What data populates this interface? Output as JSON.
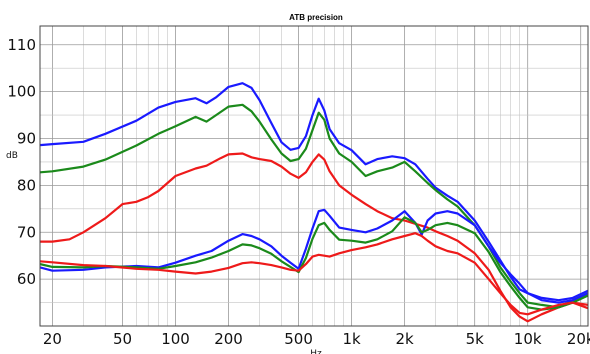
{
  "chart_data": {
    "type": "line",
    "title": "ATB precision",
    "xlabel": "Hz",
    "ylabel": "dB",
    "xscale": "log",
    "xlim": [
      17,
      22000
    ],
    "ylim": [
      50,
      114
    ],
    "x_ticks": [
      {
        "value": 20,
        "label": "20"
      },
      {
        "value": 50,
        "label": "50"
      },
      {
        "value": 100,
        "label": "100"
      },
      {
        "value": 200,
        "label": "200"
      },
      {
        "value": 500,
        "label": "500"
      },
      {
        "value": 1000,
        "label": "1k"
      },
      {
        "value": 2000,
        "label": "2k"
      },
      {
        "value": 5000,
        "label": "5k"
      },
      {
        "value": 10000,
        "label": "10k"
      },
      {
        "value": 20000,
        "label": "20k"
      }
    ],
    "y_ticks": [
      60,
      70,
      80,
      90,
      100,
      110
    ],
    "grid": true,
    "series": [
      {
        "color": "#1a1aff",
        "points": [
          [
            17,
            88.6
          ],
          [
            20,
            88.8
          ],
          [
            30,
            89.3
          ],
          [
            40,
            91
          ],
          [
            60,
            93.8
          ],
          [
            80,
            96.6
          ],
          [
            100,
            97.8
          ],
          [
            130,
            98.6
          ],
          [
            150,
            97.5
          ],
          [
            170,
            98.8
          ],
          [
            200,
            101
          ],
          [
            240,
            101.8
          ],
          [
            270,
            100.8
          ],
          [
            300,
            98.2
          ],
          [
            350,
            93.3
          ],
          [
            400,
            89.2
          ],
          [
            450,
            87.6
          ],
          [
            500,
            88
          ],
          [
            550,
            90.5
          ],
          [
            600,
            95
          ],
          [
            650,
            98.5
          ],
          [
            700,
            96
          ],
          [
            750,
            92
          ],
          [
            850,
            89
          ],
          [
            1000,
            87.5
          ],
          [
            1200,
            84.5
          ],
          [
            1400,
            85.6
          ],
          [
            1700,
            86.2
          ],
          [
            2000,
            85.8
          ],
          [
            2300,
            84.5
          ],
          [
            2700,
            81.4
          ],
          [
            3000,
            79.5
          ],
          [
            3500,
            77.8
          ],
          [
            4000,
            76.5
          ],
          [
            5000,
            72.5
          ],
          [
            6000,
            68
          ],
          [
            7000,
            64
          ],
          [
            8000,
            60.5
          ],
          [
            9000,
            57.8
          ],
          [
            10000,
            57
          ],
          [
            12000,
            56
          ],
          [
            15000,
            55.5
          ],
          [
            18000,
            56
          ],
          [
            22000,
            57.5
          ]
        ]
      },
      {
        "color": "#1b8a1b",
        "points": [
          [
            17,
            82.8
          ],
          [
            20,
            83
          ],
          [
            30,
            84
          ],
          [
            40,
            85.5
          ],
          [
            60,
            88.5
          ],
          [
            80,
            91
          ],
          [
            100,
            92.6
          ],
          [
            130,
            94.6
          ],
          [
            150,
            93.6
          ],
          [
            170,
            95
          ],
          [
            200,
            96.8
          ],
          [
            240,
            97.2
          ],
          [
            270,
            95.8
          ],
          [
            300,
            93.6
          ],
          [
            350,
            89.8
          ],
          [
            400,
            86.8
          ],
          [
            450,
            85.2
          ],
          [
            500,
            85.6
          ],
          [
            550,
            87.8
          ],
          [
            600,
            91.8
          ],
          [
            650,
            95.5
          ],
          [
            700,
            94
          ],
          [
            750,
            90
          ],
          [
            850,
            86.8
          ],
          [
            1000,
            85
          ],
          [
            1200,
            82
          ],
          [
            1400,
            83
          ],
          [
            1700,
            83.8
          ],
          [
            2000,
            85
          ],
          [
            2300,
            83
          ],
          [
            2700,
            80.5
          ],
          [
            3000,
            79
          ],
          [
            3500,
            77
          ],
          [
            4000,
            75.5
          ],
          [
            5000,
            71.5
          ],
          [
            6000,
            67
          ],
          [
            7000,
            62.5
          ],
          [
            8000,
            59.5
          ],
          [
            9000,
            57
          ],
          [
            10000,
            55
          ],
          [
            12000,
            54.5
          ],
          [
            15000,
            54
          ],
          [
            18000,
            55.5
          ],
          [
            22000,
            57
          ]
        ]
      },
      {
        "color": "#ee1a1a",
        "points": [
          [
            17,
            68
          ],
          [
            20,
            68
          ],
          [
            25,
            68.5
          ],
          [
            30,
            70
          ],
          [
            40,
            73
          ],
          [
            50,
            76
          ],
          [
            60,
            76.5
          ],
          [
            70,
            77.5
          ],
          [
            80,
            78.8
          ],
          [
            100,
            82
          ],
          [
            130,
            83.6
          ],
          [
            150,
            84.2
          ],
          [
            180,
            85.8
          ],
          [
            200,
            86.6
          ],
          [
            240,
            86.8
          ],
          [
            270,
            86
          ],
          [
            300,
            85.6
          ],
          [
            350,
            85.2
          ],
          [
            400,
            84
          ],
          [
            450,
            82.5
          ],
          [
            500,
            81.6
          ],
          [
            550,
            82.8
          ],
          [
            600,
            85
          ],
          [
            650,
            86.6
          ],
          [
            700,
            85.5
          ],
          [
            750,
            83
          ],
          [
            850,
            80
          ],
          [
            1000,
            78
          ],
          [
            1200,
            76
          ],
          [
            1400,
            74.5
          ],
          [
            1700,
            73
          ],
          [
            2000,
            72.5
          ],
          [
            2300,
            71.8
          ],
          [
            2700,
            71
          ],
          [
            3000,
            70.2
          ],
          [
            3500,
            69.2
          ],
          [
            4000,
            68.2
          ],
          [
            5000,
            65.5
          ],
          [
            6000,
            62
          ],
          [
            7000,
            57.5
          ],
          [
            8000,
            54
          ],
          [
            9000,
            52
          ],
          [
            10000,
            51
          ],
          [
            12000,
            52.5
          ],
          [
            15000,
            54
          ],
          [
            18000,
            55
          ],
          [
            22000,
            54.5
          ]
        ]
      },
      {
        "color": "#1a1aff",
        "points": [
          [
            17,
            62.5
          ],
          [
            20,
            61.8
          ],
          [
            30,
            62
          ],
          [
            40,
            62.5
          ],
          [
            60,
            62.8
          ],
          [
            80,
            62.5
          ],
          [
            100,
            63.5
          ],
          [
            130,
            65
          ],
          [
            160,
            66
          ],
          [
            200,
            68.2
          ],
          [
            240,
            69.6
          ],
          [
            270,
            69.2
          ],
          [
            300,
            68.5
          ],
          [
            350,
            67
          ],
          [
            400,
            65
          ],
          [
            450,
            63.5
          ],
          [
            500,
            62.2
          ],
          [
            550,
            66.5
          ],
          [
            600,
            70.8
          ],
          [
            650,
            74.5
          ],
          [
            700,
            74.8
          ],
          [
            750,
            73.5
          ],
          [
            850,
            71
          ],
          [
            1000,
            70.5
          ],
          [
            1200,
            70
          ],
          [
            1400,
            70.8
          ],
          [
            1700,
            72.5
          ],
          [
            2000,
            74.5
          ],
          [
            2300,
            72
          ],
          [
            2500,
            69.5
          ],
          [
            2700,
            72.5
          ],
          [
            3000,
            74
          ],
          [
            3500,
            74.5
          ],
          [
            4000,
            74
          ],
          [
            5000,
            71.5
          ],
          [
            6000,
            67
          ],
          [
            7000,
            63.5
          ],
          [
            8000,
            61
          ],
          [
            9000,
            59
          ],
          [
            10000,
            57
          ],
          [
            12000,
            55.5
          ],
          [
            15000,
            55
          ],
          [
            18000,
            55.5
          ],
          [
            22000,
            57
          ]
        ]
      },
      {
        "color": "#1b8a1b",
        "points": [
          [
            17,
            63.2
          ],
          [
            20,
            62.6
          ],
          [
            30,
            62.5
          ],
          [
            40,
            62.8
          ],
          [
            60,
            62.5
          ],
          [
            80,
            62.2
          ],
          [
            100,
            62.8
          ],
          [
            130,
            63.6
          ],
          [
            160,
            64.6
          ],
          [
            200,
            66
          ],
          [
            240,
            67.4
          ],
          [
            270,
            67.2
          ],
          [
            300,
            66.6
          ],
          [
            350,
            65.4
          ],
          [
            400,
            63.8
          ],
          [
            450,
            62.6
          ],
          [
            500,
            61.5
          ],
          [
            550,
            64.5
          ],
          [
            600,
            68.6
          ],
          [
            650,
            71.5
          ],
          [
            700,
            72
          ],
          [
            750,
            70.5
          ],
          [
            850,
            68.4
          ],
          [
            1000,
            68.2
          ],
          [
            1200,
            67.8
          ],
          [
            1400,
            68.5
          ],
          [
            1700,
            70.2
          ],
          [
            2000,
            73.2
          ],
          [
            2300,
            72
          ],
          [
            2500,
            70
          ],
          [
            2700,
            70.5
          ],
          [
            3000,
            71.5
          ],
          [
            3500,
            72
          ],
          [
            4000,
            71.5
          ],
          [
            5000,
            69.8
          ],
          [
            6000,
            65.8
          ],
          [
            7000,
            61.5
          ],
          [
            8000,
            58.5
          ],
          [
            9000,
            56
          ],
          [
            10000,
            54
          ],
          [
            12000,
            53.5
          ],
          [
            15000,
            54
          ],
          [
            18000,
            55
          ],
          [
            22000,
            56.5
          ]
        ]
      },
      {
        "color": "#ee1a1a",
        "points": [
          [
            17,
            63.8
          ],
          [
            20,
            63.6
          ],
          [
            30,
            63
          ],
          [
            40,
            62.8
          ],
          [
            60,
            62.2
          ],
          [
            80,
            62
          ],
          [
            100,
            61.6
          ],
          [
            130,
            61.2
          ],
          [
            160,
            61.6
          ],
          [
            200,
            62.4
          ],
          [
            240,
            63.4
          ],
          [
            270,
            63.6
          ],
          [
            300,
            63.4
          ],
          [
            350,
            63
          ],
          [
            400,
            62.5
          ],
          [
            450,
            62
          ],
          [
            500,
            61.8
          ],
          [
            550,
            63.2
          ],
          [
            600,
            64.8
          ],
          [
            650,
            65.2
          ],
          [
            700,
            65
          ],
          [
            750,
            64.8
          ],
          [
            850,
            65.5
          ],
          [
            1000,
            66.2
          ],
          [
            1200,
            66.8
          ],
          [
            1400,
            67.4
          ],
          [
            1700,
            68.5
          ],
          [
            2000,
            69.2
          ],
          [
            2300,
            69.8
          ],
          [
            2500,
            69.2
          ],
          [
            2700,
            68.2
          ],
          [
            3000,
            67
          ],
          [
            3500,
            66
          ],
          [
            4000,
            65.5
          ],
          [
            5000,
            63.5
          ],
          [
            6000,
            60
          ],
          [
            7000,
            57
          ],
          [
            8000,
            54.5
          ],
          [
            9000,
            52.8
          ],
          [
            10000,
            52.5
          ],
          [
            12000,
            53.5
          ],
          [
            15000,
            54.5
          ],
          [
            18000,
            55
          ],
          [
            22000,
            53.8
          ]
        ]
      }
    ]
  }
}
